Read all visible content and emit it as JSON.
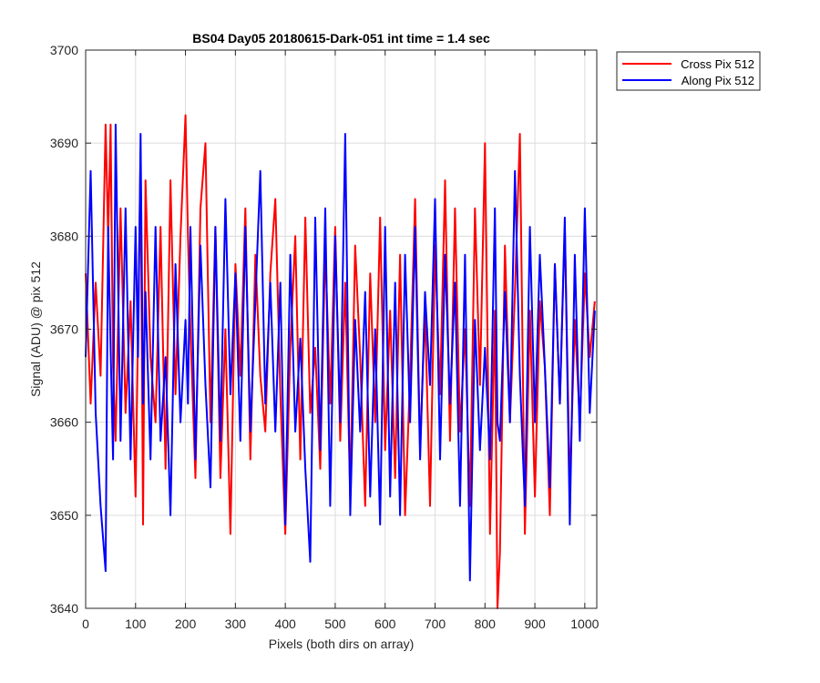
{
  "chart_data": {
    "type": "line",
    "title": "BS04 Day05 20180615-Dark-051 int time = 1.4 sec",
    "xlabel": "Pixels (both dirs on array)",
    "ylabel": "Signal (ADU) @ pix 512",
    "xlim": [
      0,
      1024
    ],
    "ylim": [
      3640,
      3700
    ],
    "xticks": [
      0,
      100,
      200,
      300,
      400,
      500,
      600,
      700,
      800,
      900,
      1000
    ],
    "yticks": [
      3640,
      3650,
      3660,
      3670,
      3680,
      3690,
      3700
    ],
    "xtick_labels": [
      "0",
      "100",
      "200",
      "300",
      "400",
      "500",
      "600",
      "700",
      "800",
      "900",
      "1000"
    ],
    "ytick_labels": [
      "3640",
      "3650",
      "3660",
      "3670",
      "3680",
      "3690",
      "3700"
    ],
    "grid": true,
    "legend_position": "top-right outside",
    "x": [
      0,
      10,
      20,
      30,
      40,
      45,
      50,
      55,
      60,
      70,
      80,
      90,
      100,
      105,
      110,
      115,
      120,
      130,
      140,
      150,
      160,
      170,
      180,
      190,
      200,
      205,
      210,
      220,
      230,
      240,
      250,
      260,
      270,
      280,
      290,
      300,
      310,
      320,
      330,
      340,
      350,
      360,
      370,
      380,
      390,
      400,
      410,
      420,
      430,
      440,
      450,
      460,
      470,
      480,
      490,
      500,
      510,
      520,
      530,
      540,
      550,
      560,
      570,
      580,
      590,
      600,
      610,
      620,
      630,
      640,
      650,
      660,
      670,
      680,
      690,
      700,
      710,
      720,
      730,
      740,
      750,
      760,
      770,
      780,
      790,
      800,
      810,
      820,
      825,
      830,
      840,
      850,
      860,
      870,
      880,
      890,
      900,
      910,
      920,
      930,
      940,
      950,
      960,
      970,
      980,
      990,
      1000,
      1010,
      1020
    ],
    "series": [
      {
        "name": "Cross Pix 512",
        "color": "#ff0000",
        "values": [
          3676,
          3662,
          3675,
          3665,
          3692,
          3680,
          3692,
          3666,
          3658,
          3683,
          3661,
          3673,
          3652,
          3670,
          3689,
          3649,
          3686,
          3667,
          3660,
          3681,
          3655,
          3686,
          3663,
          3680,
          3693,
          3680,
          3670,
          3654,
          3683,
          3690,
          3660,
          3681,
          3654,
          3670,
          3648,
          3677,
          3665,
          3683,
          3656,
          3678,
          3665,
          3659,
          3676,
          3684,
          3663,
          3648,
          3668,
          3680,
          3656,
          3682,
          3661,
          3668,
          3655,
          3679,
          3662,
          3681,
          3658,
          3675,
          3652,
          3679,
          3667,
          3651,
          3676,
          3660,
          3682,
          3657,
          3672,
          3654,
          3678,
          3650,
          3665,
          3684,
          3657,
          3672,
          3651,
          3679,
          3663,
          3686,
          3658,
          3683,
          3659,
          3670,
          3651,
          3683,
          3664,
          3690,
          3648,
          3672,
          3640,
          3646,
          3679,
          3660,
          3674,
          3691,
          3648,
          3672,
          3652,
          3673,
          3666,
          3650,
          3677,
          3662,
          3681,
          3653,
          3671,
          3660,
          3676,
          3667,
          3673
        ]
      },
      {
        "name": "Along Pix 512",
        "color": "#0000ff",
        "values": [
          3667,
          3687,
          3661,
          3651,
          3644,
          3681,
          3668,
          3656,
          3692,
          3658,
          3683,
          3656,
          3681,
          3667,
          3691,
          3662,
          3674,
          3656,
          3681,
          3658,
          3667,
          3650,
          3677,
          3660,
          3671,
          3662,
          3681,
          3656,
          3679,
          3664,
          3653,
          3681,
          3658,
          3684,
          3663,
          3676,
          3658,
          3681,
          3659,
          3673,
          3687,
          3662,
          3675,
          3659,
          3675,
          3649,
          3678,
          3659,
          3669,
          3655,
          3645,
          3682,
          3657,
          3683,
          3651,
          3680,
          3660,
          3691,
          3650,
          3671,
          3659,
          3674,
          3652,
          3670,
          3649,
          3681,
          3652,
          3675,
          3650,
          3678,
          3660,
          3681,
          3656,
          3674,
          3664,
          3684,
          3656,
          3678,
          3662,
          3675,
          3651,
          3678,
          3643,
          3671,
          3657,
          3668,
          3656,
          3683,
          3660,
          3658,
          3674,
          3660,
          3687,
          3665,
          3651,
          3681,
          3660,
          3678,
          3666,
          3653,
          3677,
          3662,
          3682,
          3649,
          3678,
          3658,
          3683,
          3661,
          3672
        ]
      }
    ]
  }
}
